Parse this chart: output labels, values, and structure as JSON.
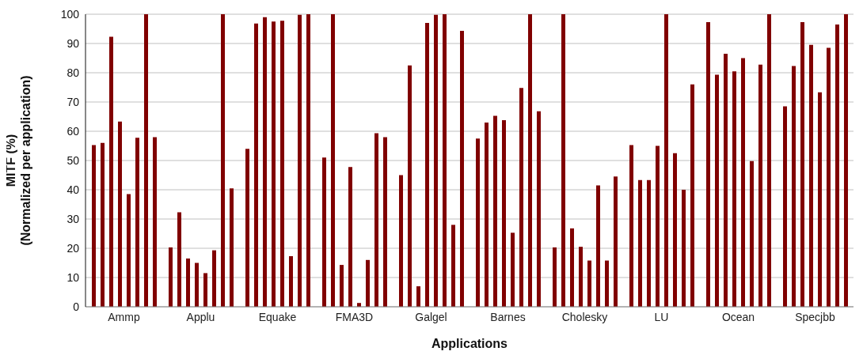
{
  "chart_data": {
    "type": "bar",
    "xlabel": "Applications",
    "ylabel": "MITF (%)\n(Normalized per application)",
    "categories": [
      "Ammp",
      "Applu",
      "Equake",
      "FMA3D",
      "Galgel",
      "Barnes",
      "Cholesky",
      "LU",
      "Ocean",
      "Specjbb"
    ],
    "series": [
      {
        "color": "#800000",
        "values": [
          55.3,
          20.3,
          54,
          51,
          45,
          57.5,
          20.3,
          55.3,
          97.3,
          68.5
        ]
      },
      {
        "color": "#800000",
        "values": [
          56,
          32.3,
          96.8,
          100,
          82.5,
          63,
          100,
          43.3,
          79.3,
          82.3
        ]
      },
      {
        "color": "#800000",
        "values": [
          92.3,
          16.5,
          99,
          14.3,
          7,
          65.3,
          26.8,
          43.3,
          86.5,
          97.3
        ]
      },
      {
        "color": "#800000",
        "values": [
          63.3,
          15,
          97.5,
          47.8,
          97,
          63.8,
          20.5,
          55,
          80.5,
          89.5
        ]
      },
      {
        "color": "#800000",
        "values": [
          38.5,
          11.5,
          97.8,
          1.3,
          99.8,
          25.3,
          15.8,
          100,
          85,
          73.3
        ]
      },
      {
        "color": "#800000",
        "values": [
          57.8,
          19.3,
          17.3,
          16,
          100,
          74.8,
          41.5,
          52.5,
          49.8,
          88.5
        ]
      },
      {
        "color": "#800000",
        "values": [
          100,
          100,
          99.8,
          59.3,
          28,
          100,
          15.8,
          40,
          82.8,
          96.5
        ]
      },
      {
        "color": "#800000",
        "values": [
          58,
          40.5,
          100,
          58,
          94.3,
          66.8,
          44.5,
          76,
          100,
          100
        ]
      }
    ],
    "ylim": [
      0,
      100
    ],
    "yticks": [
      0,
      10,
      20,
      30,
      40,
      50,
      60,
      70,
      80,
      90,
      100
    ],
    "grid": "y",
    "legend": false
  }
}
